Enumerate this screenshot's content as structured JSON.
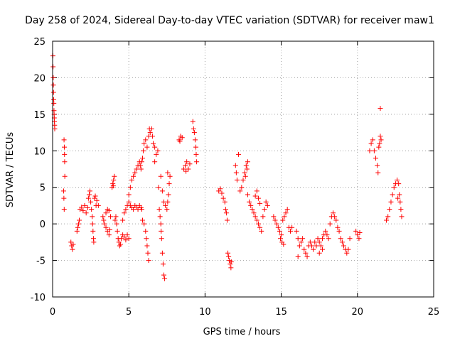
{
  "chart_data": {
    "type": "scatter",
    "title": "Day 258 of 2024, Sidereal Day-to-day VTEC variation (SDTVAR) for receiver maw1",
    "xlabel": "GPS time / hours",
    "ylabel": "SDTVAR / TECUs",
    "xlim": [
      0,
      25
    ],
    "ylim": [
      -10,
      25
    ],
    "xticks": [
      0,
      5,
      10,
      15,
      20,
      25
    ],
    "yticks": [
      -10,
      -5,
      0,
      5,
      10,
      15,
      20,
      25
    ],
    "xtick_labels": [
      "0",
      "5",
      "10",
      "15",
      "20",
      "25"
    ],
    "ytick_labels": [
      "-10",
      "-5",
      "0",
      "5",
      "10",
      "15",
      "20",
      "25"
    ],
    "grid": true,
    "marker": "+",
    "color": "#ff0000",
    "series": [
      {
        "name": "SDTVAR",
        "points": [
          [
            0.02,
            23.0
          ],
          [
            0.03,
            21.5
          ],
          [
            0.04,
            20.0
          ],
          [
            0.05,
            19.0
          ],
          [
            0.06,
            18.0
          ],
          [
            0.07,
            17.0
          ],
          [
            0.08,
            16.5
          ],
          [
            0.09,
            15.5
          ],
          [
            0.1,
            15.0
          ],
          [
            0.11,
            14.5
          ],
          [
            0.12,
            14.0
          ],
          [
            0.13,
            13.5
          ],
          [
            0.14,
            13.0
          ],
          [
            0.75,
            11.5
          ],
          [
            0.77,
            10.5
          ],
          [
            0.78,
            9.5
          ],
          [
            0.79,
            8.5
          ],
          [
            0.8,
            6.5
          ],
          [
            0.72,
            4.5
          ],
          [
            0.74,
            3.5
          ],
          [
            0.76,
            2.0
          ],
          [
            1.2,
            -2.5
          ],
          [
            1.25,
            -3.0
          ],
          [
            1.3,
            -3.5
          ],
          [
            1.35,
            -2.8
          ],
          [
            1.6,
            -1.0
          ],
          [
            1.65,
            -0.5
          ],
          [
            1.7,
            0.0
          ],
          [
            1.75,
            0.5
          ],
          [
            1.8,
            2.0
          ],
          [
            1.9,
            2.3
          ],
          [
            2.0,
            1.8
          ],
          [
            2.1,
            2.5
          ],
          [
            2.2,
            1.5
          ],
          [
            2.3,
            2.2
          ],
          [
            2.35,
            3.5
          ],
          [
            2.4,
            4.0
          ],
          [
            2.45,
            4.5
          ],
          [
            2.5,
            3.0
          ],
          [
            2.55,
            2.0
          ],
          [
            2.6,
            1.0
          ],
          [
            2.62,
            0.0
          ],
          [
            2.65,
            -1.0
          ],
          [
            2.68,
            -2.0
          ],
          [
            2.7,
            -2.5
          ],
          [
            2.75,
            3.5
          ],
          [
            2.8,
            3.8
          ],
          [
            2.85,
            2.5
          ],
          [
            2.9,
            3.2
          ],
          [
            3.0,
            2.5
          ],
          [
            3.3,
            1.0
          ],
          [
            3.35,
            0.5
          ],
          [
            3.4,
            0.0
          ],
          [
            3.5,
            -0.5
          ],
          [
            3.6,
            -1.0
          ],
          [
            3.7,
            -1.5
          ],
          [
            3.75,
            -0.8
          ],
          [
            3.5,
            1.5
          ],
          [
            3.6,
            2.0
          ],
          [
            3.7,
            1.8
          ],
          [
            3.8,
            1.0
          ],
          [
            3.9,
            5.0
          ],
          [
            3.95,
            5.5
          ],
          [
            4.0,
            6.0
          ],
          [
            4.05,
            6.5
          ],
          [
            3.98,
            5.2
          ],
          [
            4.1,
            0.5
          ],
          [
            4.15,
            1.0
          ],
          [
            4.2,
            0.0
          ],
          [
            4.25,
            -1.0
          ],
          [
            4.3,
            -2.0
          ],
          [
            4.35,
            -2.5
          ],
          [
            4.4,
            -3.0
          ],
          [
            4.45,
            -2.8
          ],
          [
            4.5,
            -2.0
          ],
          [
            4.6,
            -1.5
          ],
          [
            4.7,
            -1.8
          ],
          [
            4.8,
            -2.2
          ],
          [
            4.9,
            -1.5
          ],
          [
            5.0,
            -2.0
          ],
          [
            4.6,
            0.5
          ],
          [
            4.7,
            1.5
          ],
          [
            4.8,
            2.0
          ],
          [
            4.9,
            2.5
          ],
          [
            5.0,
            3.0
          ],
          [
            5.1,
            2.5
          ],
          [
            5.2,
            2.2
          ],
          [
            5.3,
            2.0
          ],
          [
            5.4,
            2.5
          ],
          [
            5.5,
            2.3
          ],
          [
            5.6,
            2.0
          ],
          [
            5.7,
            2.5
          ],
          [
            5.8,
            2.2
          ],
          [
            5.85,
            2.0
          ],
          [
            5.0,
            4.0
          ],
          [
            5.1,
            5.0
          ],
          [
            5.2,
            6.0
          ],
          [
            5.3,
            6.5
          ],
          [
            5.4,
            7.0
          ],
          [
            5.5,
            7.5
          ],
          [
            5.6,
            8.0
          ],
          [
            5.7,
            8.5
          ],
          [
            5.75,
            8.0
          ],
          [
            5.8,
            7.5
          ],
          [
            5.85,
            8.5
          ],
          [
            5.9,
            9.0
          ],
          [
            5.9,
            0.5
          ],
          [
            6.0,
            0.0
          ],
          [
            6.1,
            -1.0
          ],
          [
            6.15,
            -2.0
          ],
          [
            6.2,
            -3.0
          ],
          [
            6.25,
            -4.0
          ],
          [
            6.3,
            -5.0
          ],
          [
            5.95,
            10.0
          ],
          [
            6.0,
            11.0
          ],
          [
            6.1,
            11.5
          ],
          [
            6.2,
            10.5
          ],
          [
            6.3,
            12.0
          ],
          [
            6.35,
            13.0
          ],
          [
            6.4,
            12.5
          ],
          [
            6.5,
            13.0
          ],
          [
            6.55,
            12.0
          ],
          [
            6.6,
            11.0
          ],
          [
            6.7,
            10.5
          ],
          [
            6.8,
            9.5
          ],
          [
            6.9,
            10.0
          ],
          [
            6.7,
            8.5
          ],
          [
            6.95,
            5.0
          ],
          [
            7.0,
            2.0
          ],
          [
            7.05,
            1.0
          ],
          [
            7.1,
            0.0
          ],
          [
            7.12,
            -1.0
          ],
          [
            7.15,
            -2.0
          ],
          [
            7.2,
            -4.0
          ],
          [
            7.25,
            -5.5
          ],
          [
            7.3,
            -7.0
          ],
          [
            7.35,
            -7.5
          ],
          [
            7.1,
            6.5
          ],
          [
            7.2,
            4.5
          ],
          [
            7.3,
            3.0
          ],
          [
            7.4,
            2.5
          ],
          [
            7.5,
            2.0
          ],
          [
            7.55,
            3.0
          ],
          [
            7.6,
            4.0
          ],
          [
            7.65,
            5.5
          ],
          [
            7.7,
            6.5
          ],
          [
            7.55,
            7.0
          ],
          [
            8.3,
            11.5
          ],
          [
            8.4,
            12.0
          ],
          [
            8.5,
            11.8
          ],
          [
            8.35,
            11.3
          ],
          [
            8.6,
            7.5
          ],
          [
            8.7,
            8.0
          ],
          [
            8.8,
            8.5
          ],
          [
            8.9,
            7.5
          ],
          [
            9.0,
            8.2
          ],
          [
            8.75,
            7.2
          ],
          [
            9.2,
            14.0
          ],
          [
            9.25,
            13.0
          ],
          [
            9.3,
            12.5
          ],
          [
            9.35,
            11.5
          ],
          [
            9.4,
            10.5
          ],
          [
            9.42,
            9.5
          ],
          [
            9.45,
            8.5
          ],
          [
            10.9,
            4.5
          ],
          [
            11.0,
            4.8
          ],
          [
            11.1,
            4.2
          ],
          [
            11.2,
            3.5
          ],
          [
            11.3,
            3.0
          ],
          [
            11.35,
            2.0
          ],
          [
            11.4,
            1.5
          ],
          [
            11.45,
            0.5
          ],
          [
            11.5,
            -4.0
          ],
          [
            11.55,
            -4.5
          ],
          [
            11.6,
            -5.0
          ],
          [
            11.65,
            -5.5
          ],
          [
            11.7,
            -6.0
          ],
          [
            11.72,
            -5.2
          ],
          [
            12.0,
            8.0
          ],
          [
            12.05,
            7.0
          ],
          [
            12.1,
            6.0
          ],
          [
            12.2,
            9.5
          ],
          [
            12.3,
            4.5
          ],
          [
            12.4,
            5.0
          ],
          [
            12.5,
            6.0
          ],
          [
            12.6,
            7.0
          ],
          [
            12.7,
            8.0
          ],
          [
            12.8,
            8.5
          ],
          [
            12.75,
            7.5
          ],
          [
            12.65,
            6.5
          ],
          [
            12.8,
            4.0
          ],
          [
            12.9,
            3.0
          ],
          [
            13.0,
            2.5
          ],
          [
            13.1,
            2.0
          ],
          [
            13.2,
            1.5
          ],
          [
            13.3,
            1.0
          ],
          [
            13.4,
            0.5
          ],
          [
            13.5,
            0.0
          ],
          [
            13.6,
            -0.5
          ],
          [
            13.7,
            -1.0
          ],
          [
            13.8,
            1.0
          ],
          [
            13.9,
            2.0
          ],
          [
            14.0,
            3.0
          ],
          [
            14.1,
            2.5
          ],
          [
            13.5,
            3.5
          ],
          [
            13.4,
            4.5
          ],
          [
            13.3,
            3.8
          ],
          [
            13.6,
            2.8
          ],
          [
            14.5,
            1.0
          ],
          [
            14.6,
            0.5
          ],
          [
            14.7,
            0.0
          ],
          [
            14.8,
            -0.5
          ],
          [
            14.9,
            -1.0
          ],
          [
            15.0,
            -1.5
          ],
          [
            15.1,
            0.5
          ],
          [
            15.2,
            1.0
          ],
          [
            15.3,
            1.5
          ],
          [
            15.4,
            2.0
          ],
          [
            15.5,
            -0.5
          ],
          [
            15.6,
            -1.0
          ],
          [
            15.7,
            -0.5
          ],
          [
            14.95,
            -2.0
          ],
          [
            15.05,
            -2.5
          ],
          [
            15.15,
            -2.8
          ],
          [
            16.0,
            -1.0
          ],
          [
            16.1,
            -2.0
          ],
          [
            16.2,
            -3.0
          ],
          [
            16.3,
            -2.5
          ],
          [
            16.4,
            -2.0
          ],
          [
            16.5,
            -3.5
          ],
          [
            16.6,
            -4.0
          ],
          [
            16.7,
            -4.5
          ],
          [
            16.8,
            -3.0
          ],
          [
            16.9,
            -2.5
          ],
          [
            16.1,
            -4.5
          ],
          [
            17.0,
            -3.0
          ],
          [
            17.1,
            -3.5
          ],
          [
            17.2,
            -2.5
          ],
          [
            17.3,
            -3.0
          ],
          [
            17.4,
            -2.0
          ],
          [
            17.5,
            -2.5
          ],
          [
            17.6,
            -3.0
          ],
          [
            17.7,
            -2.0
          ],
          [
            17.8,
            -1.5
          ],
          [
            17.9,
            -1.0
          ],
          [
            18.0,
            -1.5
          ],
          [
            18.1,
            -2.0
          ],
          [
            17.5,
            -4.0
          ],
          [
            17.7,
            -3.5
          ],
          [
            18.2,
            0.0
          ],
          [
            18.3,
            1.0
          ],
          [
            18.4,
            1.5
          ],
          [
            18.5,
            1.0
          ],
          [
            18.6,
            0.5
          ],
          [
            18.7,
            -0.5
          ],
          [
            18.8,
            -1.0
          ],
          [
            18.9,
            -2.0
          ],
          [
            19.0,
            -2.5
          ],
          [
            19.1,
            -3.0
          ],
          [
            19.2,
            -3.5
          ],
          [
            19.3,
            -4.0
          ],
          [
            19.4,
            -3.5
          ],
          [
            19.5,
            -2.0
          ],
          [
            19.9,
            -1.0
          ],
          [
            20.0,
            -1.5
          ],
          [
            20.1,
            -2.0
          ],
          [
            20.15,
            -1.2
          ],
          [
            20.8,
            10.0
          ],
          [
            20.9,
            11.0
          ],
          [
            21.0,
            11.5
          ],
          [
            21.1,
            10.0
          ],
          [
            21.2,
            9.0
          ],
          [
            21.3,
            8.0
          ],
          [
            21.35,
            7.0
          ],
          [
            21.4,
            10.5
          ],
          [
            21.45,
            11.0
          ],
          [
            21.5,
            12.0
          ],
          [
            21.55,
            11.5
          ],
          [
            21.5,
            15.8
          ],
          [
            21.9,
            0.5
          ],
          [
            22.0,
            1.0
          ],
          [
            22.1,
            2.0
          ],
          [
            22.2,
            3.0
          ],
          [
            22.3,
            4.0
          ],
          [
            22.4,
            5.0
          ],
          [
            22.5,
            5.5
          ],
          [
            22.6,
            6.0
          ],
          [
            22.7,
            5.5
          ],
          [
            22.75,
            4.0
          ],
          [
            22.8,
            3.0
          ],
          [
            22.85,
            2.0
          ],
          [
            22.9,
            1.0
          ],
          [
            22.65,
            3.5
          ]
        ]
      }
    ]
  }
}
